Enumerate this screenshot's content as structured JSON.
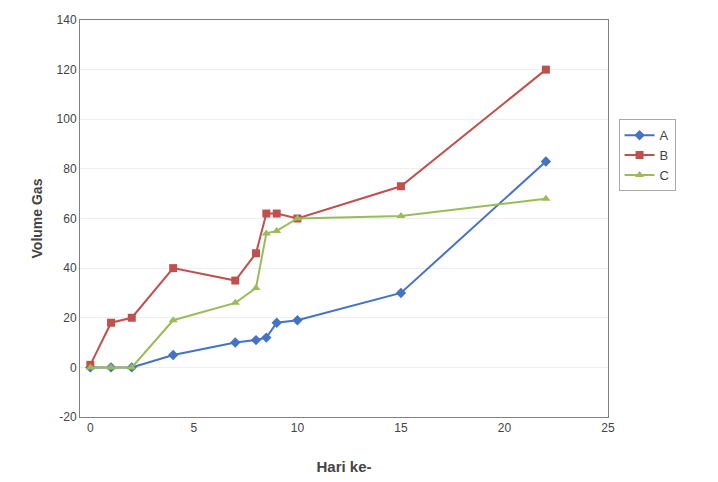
{
  "chart_data": {
    "type": "line",
    "xlabel": "Hari ke-",
    "ylabel": "Volume Gas",
    "x": [
      0,
      1,
      2,
      4,
      7,
      8,
      8.5,
      9,
      10,
      15,
      22
    ],
    "series": [
      {
        "name": "A",
        "color": "#4472C4",
        "marker": "diamond",
        "values": [
          0,
          0,
          0,
          5,
          10,
          11,
          12,
          18,
          19,
          30,
          83
        ]
      },
      {
        "name": "B",
        "color": "#C0504D",
        "marker": "square",
        "values": [
          1,
          18,
          20,
          40,
          35,
          46,
          62,
          62,
          60,
          73,
          120
        ]
      },
      {
        "name": "C",
        "color": "#9BBB59",
        "marker": "triangle",
        "values": [
          0,
          0,
          0,
          19,
          26,
          32,
          54,
          55,
          60,
          61,
          68
        ]
      }
    ],
    "xlim": [
      -0.5,
      25
    ],
    "ylim": [
      -20,
      140
    ],
    "xticks": [
      0,
      5,
      10,
      15,
      20,
      25
    ],
    "yticks": [
      -20,
      0,
      20,
      40,
      60,
      80,
      100,
      120,
      140
    ],
    "grid": "y",
    "legend": "right"
  }
}
